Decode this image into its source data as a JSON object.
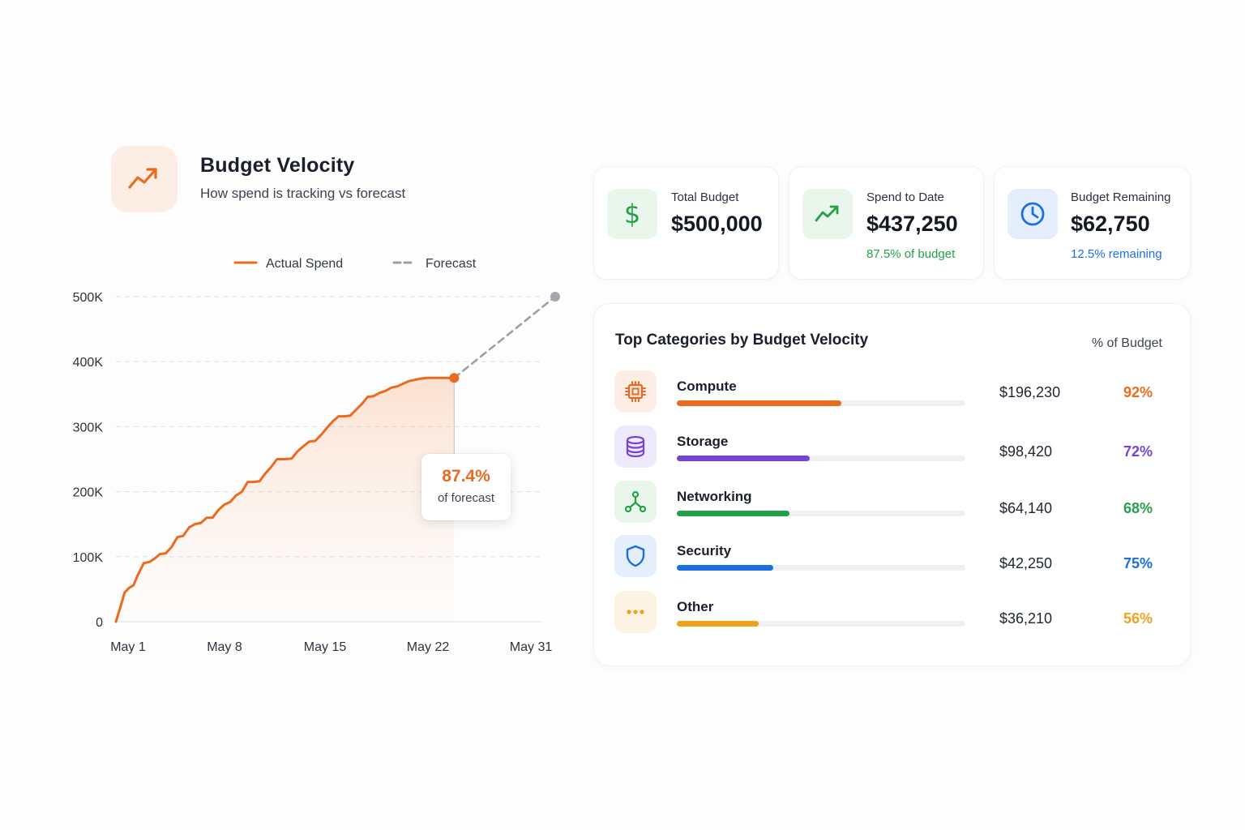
{
  "header": {
    "title": "Budget Velocity",
    "subtitle": "How spend is tracking vs forecast",
    "icon": "trending-up-icon",
    "accent": "#ea6a1e"
  },
  "chart_data": {
    "type": "line",
    "legend": [
      "Actual Spend",
      "Forecast"
    ],
    "legend_placement": "top",
    "x_ticks": [
      "May 1",
      "May 8",
      "May 15",
      "May 22",
      "May 31"
    ],
    "y_ticks": [
      "500K",
      "400K",
      "300K",
      "200K",
      "100K",
      "0"
    ],
    "ylim": [
      0,
      500000
    ],
    "xlim": [
      1,
      31
    ],
    "grid": true,
    "series": [
      {
        "name": "Actual Spend",
        "color": "#ea6a1e",
        "x": [
          1,
          1.3,
          1.6,
          1.9,
          2.2,
          2.5,
          2.9,
          3.3,
          3.7,
          4.0,
          4.4,
          4.8,
          5.2,
          5.6,
          6.0,
          6.4,
          6.8,
          7.2,
          7.6,
          8.0,
          8.4,
          8.8,
          9.2,
          9.6,
          10.0,
          10.4,
          10.8,
          11.2,
          11.6,
          12.0,
          12.5,
          13.0,
          13.4,
          13.8,
          14.2,
          14.6,
          15.0,
          15.4,
          15.8,
          16.2,
          16.6,
          17.0,
          17.4,
          17.8,
          18.2,
          18.6,
          19.0,
          19.4,
          19.8,
          20.2,
          20.6,
          21.0,
          21.4,
          21.8,
          22.2,
          22.6,
          23.0,
          23.4,
          23.8,
          24.1
        ],
        "y": [
          0,
          22000,
          45000,
          52000,
          56000,
          72000,
          90000,
          92000,
          98000,
          104000,
          105000,
          115000,
          130000,
          132000,
          145000,
          150000,
          152000,
          160000,
          160000,
          172000,
          180000,
          184000,
          194000,
          200000,
          215000,
          215000,
          216000,
          228000,
          238000,
          250000,
          250000,
          251000,
          262000,
          270000,
          277000,
          278000,
          287000,
          298000,
          308000,
          316000,
          316000,
          317000,
          326000,
          335000,
          346000,
          347000,
          352000,
          355000,
          360000,
          362000,
          366000,
          370000,
          372000,
          374000,
          375000,
          375000,
          375000,
          375000,
          375000,
          375000
        ]
      },
      {
        "name": "Forecast",
        "color": "#9aa0a8",
        "dashed": true,
        "x": [
          24.1,
          31
        ],
        "y": [
          375000,
          500000
        ]
      }
    ],
    "annotation": {
      "value": "87.4%",
      "label": "of forecast",
      "x": 24.1,
      "y": 375000
    }
  },
  "kpis": [
    {
      "label": "Total Budget",
      "value": "$500,000",
      "sub": "",
      "icon": "dollar-icon",
      "color": "#23a148",
      "bg": "#e8f6ec"
    },
    {
      "label": "Spend to Date",
      "value": "$437,250",
      "sub": "87.5% of budget",
      "icon": "trending-up-icon",
      "color": "#23a148",
      "bg": "#e8f6ec"
    },
    {
      "label": "Budget Remaining",
      "value": "$62,750",
      "sub": "12.5% remaining",
      "icon": "clock-icon",
      "color": "#1c6fe0",
      "bg": "#e5effc"
    }
  ],
  "categories": {
    "title": "Top Categories by Budget Velocity",
    "column_header": "% of Budget",
    "items": [
      {
        "name": "Compute",
        "amount": "$196,230",
        "pct": "92%",
        "fill": 0.57,
        "color": "#ea6a1e",
        "bg": "#fdeee5",
        "icon": "cpu-icon"
      },
      {
        "name": "Storage",
        "amount": "$98,420",
        "pct": "72%",
        "fill": 0.46,
        "color": "#7444d6",
        "bg": "#efeafb",
        "icon": "database-icon"
      },
      {
        "name": "Networking",
        "amount": "$64,140",
        "pct": "68%",
        "fill": 0.39,
        "color": "#23a148",
        "bg": "#e8f6ec",
        "icon": "network-icon"
      },
      {
        "name": "Security",
        "amount": "$42,250",
        "pct": "75%",
        "fill": 0.335,
        "color": "#1c6fe0",
        "bg": "#e5effc",
        "icon": "shield-icon"
      },
      {
        "name": "Other",
        "amount": "$36,210",
        "pct": "56%",
        "fill": 0.285,
        "color": "#f0a21c",
        "bg": "#fdf3e2",
        "icon": "more-icon"
      }
    ]
  }
}
